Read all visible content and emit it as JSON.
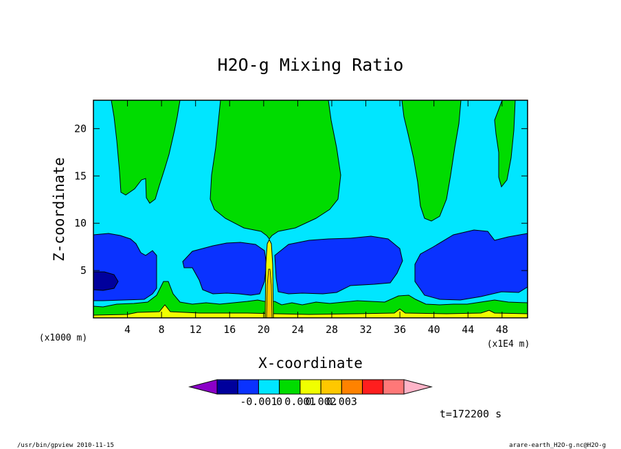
{
  "chart_data": {
    "type": "contour",
    "title": "H2O-g Mixing Ratio",
    "xlabel": "X-coordinate",
    "ylabel": "Z-coordinate",
    "x_unit_label": "(x1E4 m)",
    "y_unit_label": "(x1000 m)",
    "xlim": [
      0,
      51
    ],
    "ylim": [
      0,
      23
    ],
    "x_ticks": [
      4,
      8,
      12,
      16,
      20,
      24,
      28,
      32,
      36,
      40,
      44,
      48
    ],
    "y_ticks": [
      5,
      10,
      15,
      20
    ],
    "colorbar": {
      "tick_labels": [
        "-0.001",
        "0",
        "0.001",
        "0.002",
        "0.003"
      ],
      "colors": [
        "#8b00c8",
        "#00009c",
        "#0a32ff",
        "#00e6ff",
        "#00dc00",
        "#f0ff00",
        "#ffc800",
        "#ff8200",
        "#ff1e1e",
        "#ff7878",
        "#ffb4c8"
      ]
    },
    "time_label": "t=172200 s"
  },
  "footer": {
    "left": "/usr/bin/gpview 2010-11-15",
    "right": "arare-earth_H2O-g.nc@H2O-g"
  }
}
